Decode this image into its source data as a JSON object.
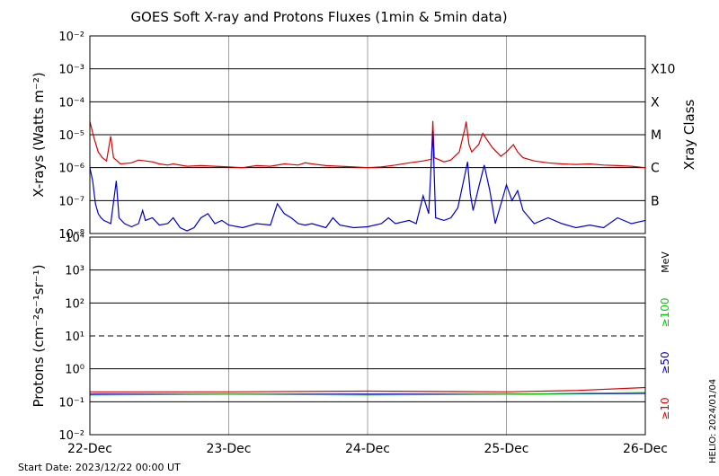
{
  "title": "GOES Soft X-ray and Protons Fluxes   (1min & 5min data)",
  "footer": {
    "start_date": "Start Date: 2023/12/22 00:00 UT",
    "credit": "HELIO: 2024/01/04"
  },
  "colors": {
    "xray_long": "#dd0000",
    "xray_short": "#0000cc",
    "proton_10": "#dd0000",
    "proton_50": "#0000cc",
    "proton_100": "#00cc00",
    "grid": "#000000",
    "day_lines": "#a0a0a0"
  },
  "chart_data": [
    {
      "type": "line",
      "panel": "xray",
      "y_scale": "log",
      "ylim": [
        1e-08,
        0.01
      ],
      "ylabel": "X-rays (Watts m⁻²)",
      "y_tick_labels": [
        "10⁻²",
        "10⁻³",
        "10⁻⁴",
        "10⁻⁵",
        "10⁻⁶",
        "10⁻⁷",
        "10⁻⁸"
      ],
      "y_tick_values": [
        0.01,
        0.001,
        0.0001,
        1e-05,
        1e-06,
        1e-07,
        1e-08
      ],
      "right_label": "Xray Class",
      "class_labels": [
        {
          "label": "X10",
          "value": 0.001
        },
        {
          "label": "X",
          "value": 0.0001
        },
        {
          "label": "M",
          "value": 1e-05
        },
        {
          "label": "C",
          "value": 1e-06
        },
        {
          "label": "B",
          "value": 1e-07
        }
      ],
      "x_ticks": [
        "22-Dec",
        "23-Dec",
        "24-Dec",
        "25-Dec",
        "26-Dec"
      ],
      "x_unit": "days since 2023-12-22 00:00 UT",
      "series": [
        {
          "color": "#dd0000",
          "points": [
            [
              0,
              2.5e-05
            ],
            [
              0.03,
              8e-06
            ],
            [
              0.06,
              3e-06
            ],
            [
              0.09,
              2e-06
            ],
            [
              0.12,
              1.6e-06
            ],
            [
              0.15,
              9e-06
            ],
            [
              0.17,
              2e-06
            ],
            [
              0.22,
              1.3e-06
            ],
            [
              0.3,
              1.4e-06
            ],
            [
              0.35,
              1.7e-06
            ],
            [
              0.4,
              1.6e-06
            ],
            [
              0.45,
              1.5e-06
            ],
            [
              0.5,
              1.3e-06
            ],
            [
              0.56,
              1.2e-06
            ],
            [
              0.6,
              1.3e-06
            ],
            [
              0.7,
              1.1e-06
            ],
            [
              0.8,
              1.15e-06
            ],
            [
              0.9,
              1.1e-06
            ],
            [
              1.0,
              1.05e-06
            ],
            [
              1.1,
              1e-06
            ],
            [
              1.2,
              1.15e-06
            ],
            [
              1.3,
              1.1e-06
            ],
            [
              1.4,
              1.3e-06
            ],
            [
              1.5,
              1.2e-06
            ],
            [
              1.55,
              1.4e-06
            ],
            [
              1.6,
              1.3e-06
            ],
            [
              1.7,
              1.15e-06
            ],
            [
              1.8,
              1.1e-06
            ],
            [
              1.9,
              1.05e-06
            ],
            [
              2.0,
              1e-06
            ],
            [
              2.1,
              1.05e-06
            ],
            [
              2.2,
              1.2e-06
            ],
            [
              2.3,
              1.4e-06
            ],
            [
              2.4,
              1.6e-06
            ],
            [
              2.46,
              1.8e-06
            ],
            [
              2.47,
              2.6e-05
            ],
            [
              2.48,
              2e-06
            ],
            [
              2.55,
              1.5e-06
            ],
            [
              2.6,
              1.7e-06
            ],
            [
              2.66,
              3e-06
            ],
            [
              2.7,
              1.5e-05
            ],
            [
              2.71,
              2.5e-05
            ],
            [
              2.73,
              5e-06
            ],
            [
              2.75,
              3e-06
            ],
            [
              2.8,
              5e-06
            ],
            [
              2.83,
              1.1e-05
            ],
            [
              2.86,
              7e-06
            ],
            [
              2.9,
              4e-06
            ],
            [
              2.96,
              2.2e-06
            ],
            [
              3.0,
              3e-06
            ],
            [
              3.05,
              5e-06
            ],
            [
              3.08,
              3e-06
            ],
            [
              3.12,
              2e-06
            ],
            [
              3.2,
              1.6e-06
            ],
            [
              3.3,
              1.4e-06
            ],
            [
              3.4,
              1.3e-06
            ],
            [
              3.5,
              1.25e-06
            ],
            [
              3.6,
              1.3e-06
            ],
            [
              3.7,
              1.2e-06
            ],
            [
              3.8,
              1.15e-06
            ],
            [
              3.9,
              1.1e-06
            ],
            [
              4.0,
              1e-06
            ]
          ]
        },
        {
          "color": "#0000cc",
          "points": [
            [
              0,
              1e-06
            ],
            [
              0.02,
              4e-07
            ],
            [
              0.04,
              8e-08
            ],
            [
              0.06,
              4e-08
            ],
            [
              0.08,
              3e-08
            ],
            [
              0.1,
              2.5e-08
            ],
            [
              0.15,
              2e-08
            ],
            [
              0.19,
              4e-07
            ],
            [
              0.21,
              3e-08
            ],
            [
              0.25,
              2e-08
            ],
            [
              0.3,
              1.6e-08
            ],
            [
              0.35,
              2e-08
            ],
            [
              0.38,
              5e-08
            ],
            [
              0.4,
              2.5e-08
            ],
            [
              0.45,
              3e-08
            ],
            [
              0.5,
              1.8e-08
            ],
            [
              0.56,
              2e-08
            ],
            [
              0.6,
              3e-08
            ],
            [
              0.65,
              1.5e-08
            ],
            [
              0.7,
              1.2e-08
            ],
            [
              0.75,
              1.5e-08
            ],
            [
              0.8,
              3e-08
            ],
            [
              0.85,
              4e-08
            ],
            [
              0.9,
              2e-08
            ],
            [
              0.95,
              2.5e-08
            ],
            [
              1.0,
              1.8e-08
            ],
            [
              1.1,
              1.5e-08
            ],
            [
              1.2,
              2e-08
            ],
            [
              1.3,
              1.8e-08
            ],
            [
              1.35,
              8e-08
            ],
            [
              1.4,
              4e-08
            ],
            [
              1.45,
              3e-08
            ],
            [
              1.5,
              2e-08
            ],
            [
              1.55,
              1.8e-08
            ],
            [
              1.6,
              2e-08
            ],
            [
              1.7,
              1.5e-08
            ],
            [
              1.75,
              3e-08
            ],
            [
              1.8,
              1.8e-08
            ],
            [
              1.9,
              1.5e-08
            ],
            [
              2.0,
              1.6e-08
            ],
            [
              2.1,
              2e-08
            ],
            [
              2.15,
              3e-08
            ],
            [
              2.2,
              2e-08
            ],
            [
              2.3,
              2.5e-08
            ],
            [
              2.35,
              2e-08
            ],
            [
              2.4,
              1.4e-07
            ],
            [
              2.44,
              4e-08
            ],
            [
              2.47,
              1.3e-05
            ],
            [
              2.49,
              3e-08
            ],
            [
              2.55,
              2.5e-08
            ],
            [
              2.6,
              3e-08
            ],
            [
              2.65,
              6e-08
            ],
            [
              2.7,
              6e-07
            ],
            [
              2.72,
              1.5e-06
            ],
            [
              2.74,
              1.6e-07
            ],
            [
              2.76,
              5e-08
            ],
            [
              2.8,
              2.5e-07
            ],
            [
              2.84,
              1.2e-06
            ],
            [
              2.88,
              2e-07
            ],
            [
              2.92,
              2e-08
            ],
            [
              3.0,
              3e-07
            ],
            [
              3.04,
              1e-07
            ],
            [
              3.08,
              2e-07
            ],
            [
              3.12,
              5e-08
            ],
            [
              3.2,
              2e-08
            ],
            [
              3.3,
              3e-08
            ],
            [
              3.4,
              2e-08
            ],
            [
              3.5,
              1.5e-08
            ],
            [
              3.6,
              1.8e-08
            ],
            [
              3.7,
              1.5e-08
            ],
            [
              3.8,
              3e-08
            ],
            [
              3.9,
              2e-08
            ],
            [
              4.0,
              2.5e-08
            ]
          ]
        }
      ]
    },
    {
      "type": "line",
      "panel": "protons",
      "y_scale": "log",
      "ylim": [
        0.01,
        10000
      ],
      "ylabel": "Protons (cm⁻²s⁻¹sr⁻¹)",
      "y_tick_labels": [
        "10⁴",
        "10³",
        "10²",
        "10¹",
        "10⁰",
        "10⁻¹",
        "10⁻²"
      ],
      "y_tick_values": [
        10000,
        1000,
        100,
        10,
        1,
        0.1,
        0.01
      ],
      "threshold_dashed": 10,
      "right_unit": "MeV",
      "x_ticks": [
        "22-Dec",
        "23-Dec",
        "24-Dec",
        "25-Dec",
        "26-Dec"
      ],
      "series": [
        {
          "name": "≥10",
          "color": "#dd0000",
          "points": [
            [
              0,
              0.2
            ],
            [
              1,
              0.2
            ],
            [
              2,
              0.21
            ],
            [
              3,
              0.2
            ],
            [
              3.5,
              0.22
            ],
            [
              4,
              0.27
            ]
          ]
        },
        {
          "name": "≥50",
          "color": "#0000cc",
          "points": [
            [
              0,
              0.17
            ],
            [
              1,
              0.17
            ],
            [
              2,
              0.17
            ],
            [
              3,
              0.17
            ],
            [
              4,
              0.18
            ]
          ]
        },
        {
          "name": "≥100",
          "color": "#00cc00",
          "points": [
            [
              0,
              0.16
            ],
            [
              1,
              0.17
            ],
            [
              2,
              0.16
            ],
            [
              3,
              0.17
            ],
            [
              4,
              0.19
            ]
          ]
        }
      ]
    }
  ]
}
